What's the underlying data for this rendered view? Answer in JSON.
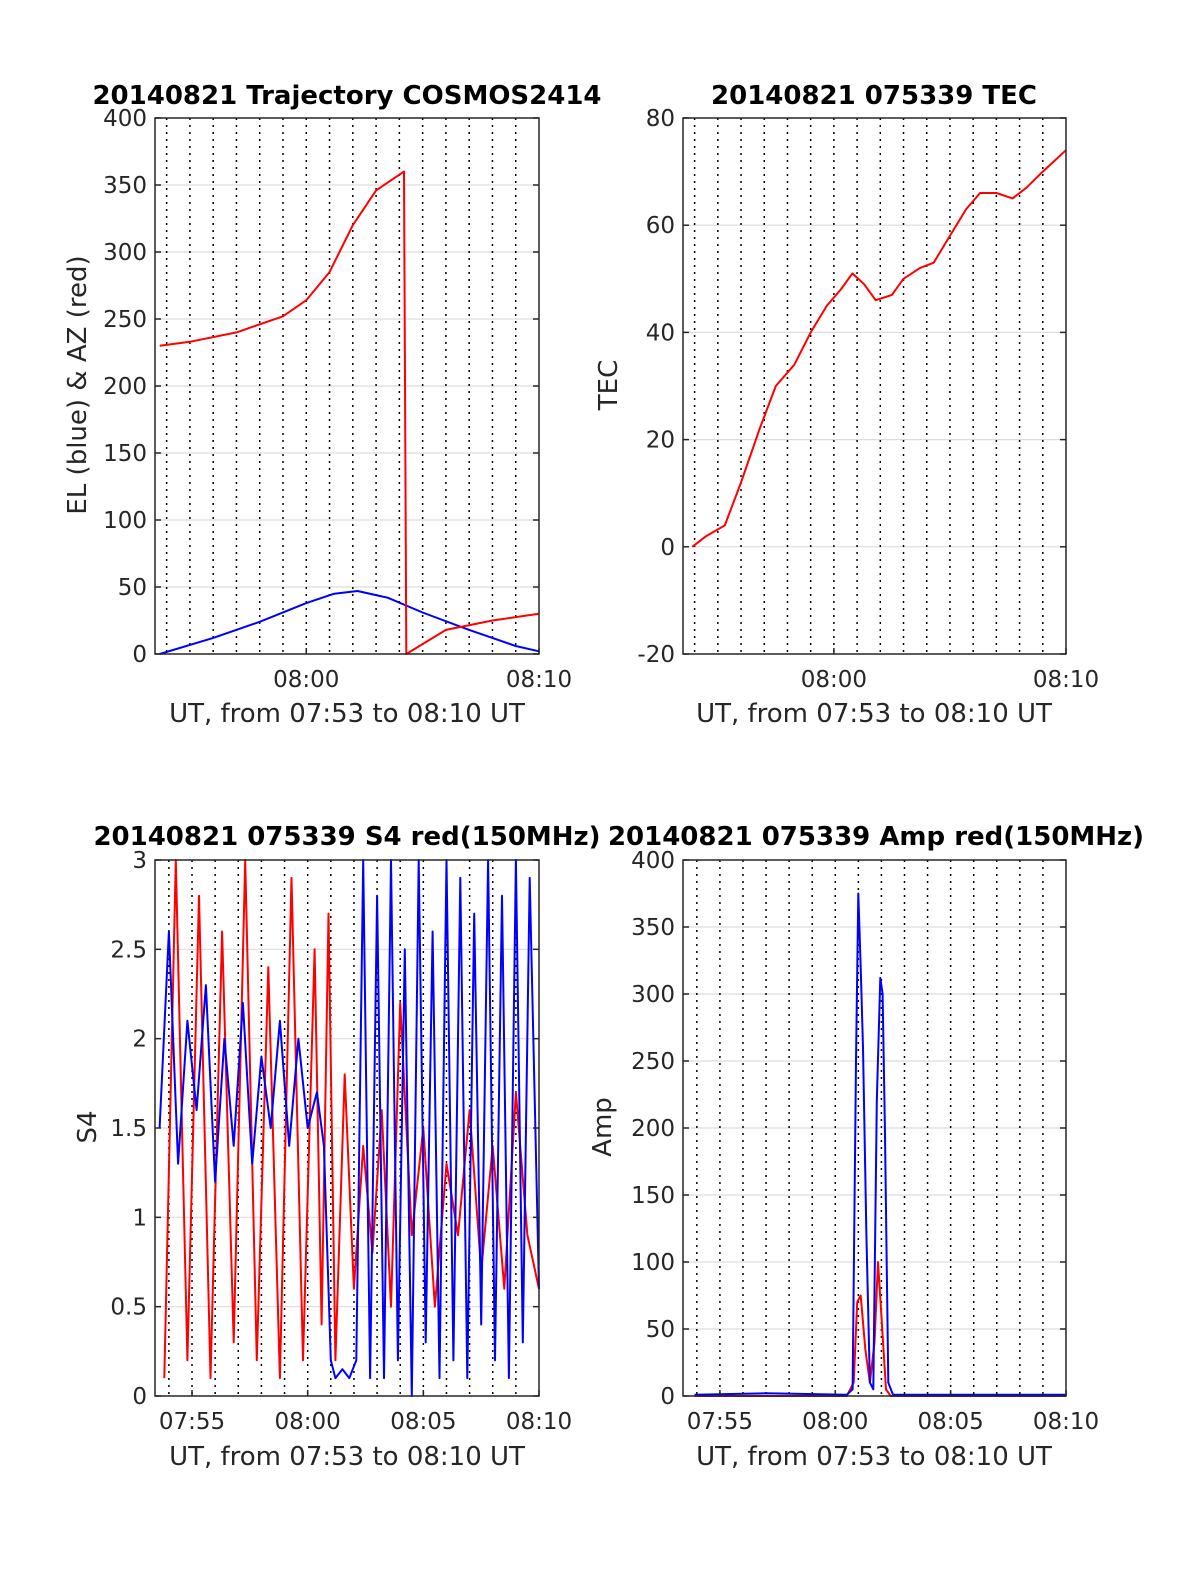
{
  "chart_data": [
    {
      "id": "trajectory",
      "type": "line",
      "title": "20140821 Trajectory COSMOS2414",
      "xlabel": "UT, from 07:53 to 08:10 UT",
      "ylabel": "EL (blue) & AZ (red)",
      "xlim_min": [
        473.5,
        490
      ],
      "ylim": [
        0,
        400
      ],
      "yticks": [
        0,
        50,
        100,
        150,
        200,
        250,
        300,
        350,
        400
      ],
      "xtick_labels": [
        {
          "x": 480,
          "label": "08:00"
        },
        {
          "x": 490,
          "label": "08:10"
        }
      ],
      "grid": "dotted vertical, light horizontal",
      "series": [
        {
          "color": "#0000ff",
          "x": [
            473.7,
            476,
            478,
            480,
            481.2,
            482.2,
            483.5,
            485,
            487,
            489,
            490
          ],
          "y": [
            0,
            12,
            24,
            38,
            45,
            47,
            42,
            31,
            18,
            6,
            2
          ]
        },
        {
          "color": "#ff0000",
          "x": [
            473.7,
            475,
            477,
            479,
            480,
            481,
            482,
            483,
            484.2,
            484.3,
            486,
            488,
            490
          ],
          "y": [
            230,
            233,
            240,
            252,
            264,
            285,
            320,
            346,
            360,
            0,
            18,
            25,
            30
          ]
        }
      ]
    },
    {
      "id": "tec",
      "type": "line",
      "title": "20140821 075339 TEC",
      "xlabel": "UT, from 07:53 to 08:10 UT",
      "ylabel": "TEC",
      "xlim_min": [
        473.5,
        490
      ],
      "ylim": [
        -20,
        80
      ],
      "yticks": [
        -20,
        0,
        20,
        40,
        60,
        80
      ],
      "xtick_labels": [
        {
          "x": 480,
          "label": "08:00"
        },
        {
          "x": 490,
          "label": "08:10"
        }
      ],
      "grid": "dotted vertical, light horizontal",
      "series": [
        {
          "color": "#ff0000",
          "x": [
            473.9,
            474.5,
            475.3,
            476.0,
            476.8,
            477.5,
            478.3,
            479.0,
            479.7,
            480.3,
            480.8,
            481.3,
            481.8,
            482.5,
            483.0,
            483.7,
            484.3,
            485.0,
            485.7,
            486.3,
            487.0,
            487.7,
            488.3,
            489.0,
            489.5,
            490.0
          ],
          "y": [
            0,
            2,
            4,
            12,
            22,
            30,
            34,
            40,
            45,
            48,
            51,
            49,
            46,
            47,
            50,
            52,
            53,
            58,
            63,
            66,
            66,
            65,
            67,
            70,
            72,
            74
          ]
        }
      ]
    },
    {
      "id": "s4",
      "type": "line",
      "title": "20140821 075339 S4 red(150MHz)",
      "xlabel": "UT, from 07:53 to 08:10 UT",
      "ylabel": "S4",
      "xlim_min": [
        473.4,
        490
      ],
      "ylim": [
        0,
        3
      ],
      "yticks": [
        0,
        0.5,
        1,
        1.5,
        2,
        2.5,
        3
      ],
      "xtick_labels": [
        {
          "x": 475,
          "label": "07:55"
        },
        {
          "x": 480,
          "label": "08:00"
        },
        {
          "x": 485,
          "label": "08:05"
        },
        {
          "x": 490,
          "label": "08:10"
        }
      ],
      "grid": "dotted vertical, light horizontal",
      "series": [
        {
          "color": "#ff0000",
          "x": [
            473.8,
            474.3,
            474.8,
            475.3,
            475.8,
            476.3,
            476.8,
            477.3,
            477.8,
            478.3,
            478.8,
            479.3,
            479.8,
            480.3,
            480.6,
            480.9,
            481.2,
            481.6,
            482.0,
            482.4,
            482.8,
            483.2,
            483.6,
            484.0,
            484.5,
            485.0,
            485.5,
            486.0,
            486.5,
            487.0,
            487.5,
            488.0,
            488.5,
            489.0,
            489.5,
            490.0
          ],
          "y": [
            0.1,
            3.0,
            0.2,
            2.8,
            0.1,
            2.6,
            0.3,
            3.0,
            0.2,
            2.4,
            0.1,
            2.9,
            0.2,
            2.5,
            0.4,
            2.7,
            0.2,
            1.8,
            0.6,
            1.4,
            0.8,
            1.6,
            0.5,
            2.2,
            0.9,
            1.5,
            0.5,
            1.3,
            0.9,
            1.6,
            0.7,
            1.4,
            0.6,
            1.7,
            0.9,
            0.6
          ]
        },
        {
          "color": "#0000ff",
          "x": [
            473.6,
            474.0,
            474.4,
            474.8,
            475.2,
            475.6,
            476.0,
            476.4,
            476.8,
            477.2,
            477.6,
            478.0,
            478.4,
            478.8,
            479.2,
            479.6,
            480.0,
            480.4,
            480.7,
            481.0,
            481.2,
            481.5,
            481.8,
            482.1,
            482.4,
            482.7,
            483.0,
            483.3,
            483.6,
            483.9,
            484.2,
            484.5,
            484.8,
            485.1,
            485.4,
            485.7,
            486.0,
            486.3,
            486.6,
            486.9,
            487.2,
            487.5,
            487.8,
            488.1,
            488.4,
            488.7,
            489.0,
            489.3,
            489.6,
            490.0
          ],
          "y": [
            1.5,
            2.6,
            1.3,
            2.1,
            1.6,
            2.3,
            1.2,
            2.0,
            1.4,
            2.2,
            1.3,
            1.9,
            1.5,
            2.1,
            1.4,
            2.0,
            1.5,
            1.7,
            1.4,
            0.2,
            0.1,
            0.15,
            0.1,
            0.2,
            3.0,
            0.1,
            2.8,
            0.1,
            3.0,
            0.2,
            2.5,
            0.0,
            3.0,
            0.3,
            2.6,
            0.1,
            3.0,
            0.2,
            2.9,
            0.1,
            2.7,
            0.4,
            3.0,
            0.2,
            2.8,
            0.1,
            3.0,
            0.3,
            2.9,
            0.6
          ]
        }
      ]
    },
    {
      "id": "amp",
      "type": "line",
      "title": "20140821 075339 Amp red(150MHz)",
      "xlabel": "UT, from 07:53 to 08:10 UT",
      "ylabel": "Amp",
      "xlim_min": [
        473.4,
        490
      ],
      "ylim": [
        0,
        400
      ],
      "yticks": [
        0,
        50,
        100,
        150,
        200,
        250,
        300,
        350,
        400
      ],
      "xtick_labels": [
        {
          "x": 475,
          "label": "07:55"
        },
        {
          "x": 480,
          "label": "08:00"
        },
        {
          "x": 485,
          "label": "08:05"
        },
        {
          "x": 490,
          "label": "08:10"
        }
      ],
      "grid": "dotted vertical, light horizontal",
      "series": [
        {
          "color": "#ff0000",
          "x": [
            473.9,
            480.5,
            480.8,
            480.95,
            481.1,
            481.3,
            481.5,
            481.7,
            481.85,
            482.0,
            482.2,
            482.4,
            490.0
          ],
          "y": [
            0,
            0,
            10,
            70,
            75,
            35,
            10,
            40,
            100,
            60,
            5,
            0,
            0
          ]
        },
        {
          "color": "#0000ff",
          "x": [
            473.9,
            477.0,
            480.5,
            480.75,
            480.9,
            481.0,
            481.1,
            481.2,
            481.35,
            481.5,
            481.65,
            481.8,
            481.95,
            482.05,
            482.15,
            482.3,
            482.5,
            490.0
          ],
          "y": [
            1,
            2,
            1,
            5,
            250,
            375,
            320,
            260,
            120,
            10,
            5,
            220,
            312,
            300,
            200,
            10,
            1,
            1
          ]
        }
      ]
    }
  ]
}
